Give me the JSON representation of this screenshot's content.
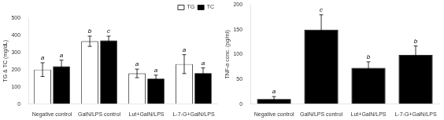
{
  "chart_data": [
    {
      "type": "bar",
      "categories": [
        "Negative control",
        "GalN/LPS control",
        "Lut+GalN/LPS",
        "L-7-G+GalN/LPS"
      ],
      "series": [
        {
          "name": "TG",
          "color": "white",
          "values": [
            200,
            365,
            178,
            232
          ],
          "errors": [
            40,
            30,
            25,
            55
          ],
          "annotations": [
            "a",
            "b",
            "a",
            "a"
          ]
        },
        {
          "name": "TC",
          "color": "black",
          "values": [
            220,
            370,
            148,
            180
          ],
          "errors": [
            35,
            25,
            20,
            30
          ],
          "annotations": [
            "a",
            "c",
            "a",
            "a"
          ]
        }
      ],
      "ylabel": "TG & TC (mg/dL)",
      "ylim": [
        0,
        500
      ],
      "yticks": [
        0,
        100,
        200,
        300,
        400,
        500
      ],
      "grid": false,
      "legend": "upper right"
    },
    {
      "type": "bar",
      "categories": [
        "Negative control",
        "GalN/LPS control",
        "Lut+GalN/LPS",
        "L-7-G+GalN/LPS"
      ],
      "values": [
        10,
        150,
        73,
        99
      ],
      "errors": [
        5,
        30,
        12,
        18
      ],
      "annotations": [
        "a",
        "c",
        "b",
        "b"
      ],
      "color": "black",
      "ylabel": "TNF-α conc. (pg/ml)",
      "ylim": [
        0,
        200
      ],
      "yticks": [
        0,
        50,
        100,
        150,
        200
      ],
      "grid": false
    }
  ]
}
